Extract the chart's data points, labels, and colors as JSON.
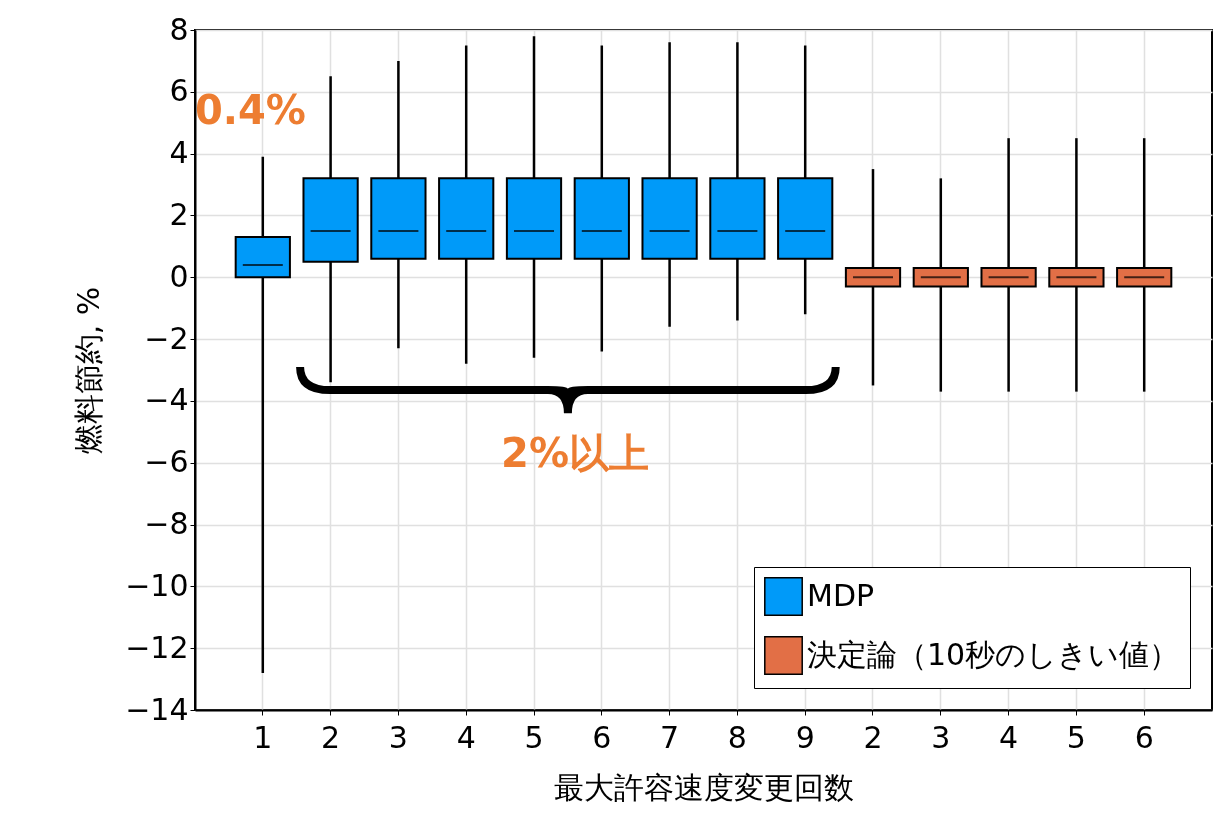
{
  "chart_data": {
    "type": "box",
    "xlabel": "最大許容速度変更回数",
    "ylabel": "燃料節約, %",
    "categories": [
      "1",
      "2",
      "3",
      "4",
      "5",
      "6",
      "7",
      "8",
      "9",
      "2",
      "3",
      "4",
      "5",
      "6"
    ],
    "ylim": [
      -14,
      8
    ],
    "yticks": [
      -14,
      -12,
      -10,
      -8,
      -6,
      -4,
      -2,
      0,
      2,
      4,
      6,
      8
    ],
    "grid": true,
    "legend": "bottom right",
    "annotations": [
      "0.4%",
      "2%以上"
    ],
    "series": [
      {
        "name": "MDP",
        "color": "#009af9",
        "boxes": [
          {
            "low": -12.8,
            "q1": 0,
            "median": 0.4,
            "q3": 1.3,
            "high": 3.9
          },
          {
            "low": -3.4,
            "q1": 0.5,
            "median": 1.5,
            "q3": 3.2,
            "high": 6.5
          },
          {
            "low": -2.3,
            "q1": 0.6,
            "median": 1.5,
            "q3": 3.2,
            "high": 7.0
          },
          {
            "low": -2.8,
            "q1": 0.6,
            "median": 1.5,
            "q3": 3.2,
            "high": 7.5
          },
          {
            "low": -2.6,
            "q1": 0.6,
            "median": 1.5,
            "q3": 3.2,
            "high": 7.8
          },
          {
            "low": -2.4,
            "q1": 0.6,
            "median": 1.5,
            "q3": 3.2,
            "high": 7.5
          },
          {
            "low": -1.6,
            "q1": 0.6,
            "median": 1.5,
            "q3": 3.2,
            "high": 7.6
          },
          {
            "low": -1.4,
            "q1": 0.6,
            "median": 1.5,
            "q3": 3.2,
            "high": 7.6
          },
          {
            "low": -1.2,
            "q1": 0.6,
            "median": 1.5,
            "q3": 3.2,
            "high": 7.5
          },
          null,
          null,
          null,
          null,
          null
        ]
      },
      {
        "name": "決定論（10秒のしきい値）",
        "color": "#e26f46",
        "boxes": [
          null,
          null,
          null,
          null,
          null,
          null,
          null,
          null,
          null,
          {
            "low": -3.5,
            "q1": -0.3,
            "median": 0,
            "q3": 0.3,
            "high": 3.5
          },
          {
            "low": -3.7,
            "q1": -0.3,
            "median": 0,
            "q3": 0.3,
            "high": 3.2
          },
          {
            "low": -3.7,
            "q1": -0.3,
            "median": 0,
            "q3": 0.3,
            "high": 4.5
          },
          {
            "low": -3.7,
            "q1": -0.3,
            "median": 0,
            "q3": 0.3,
            "high": 4.5
          },
          {
            "low": -3.7,
            "q1": -0.3,
            "median": 0,
            "q3": 0.3,
            "high": 4.5
          }
        ]
      }
    ]
  }
}
